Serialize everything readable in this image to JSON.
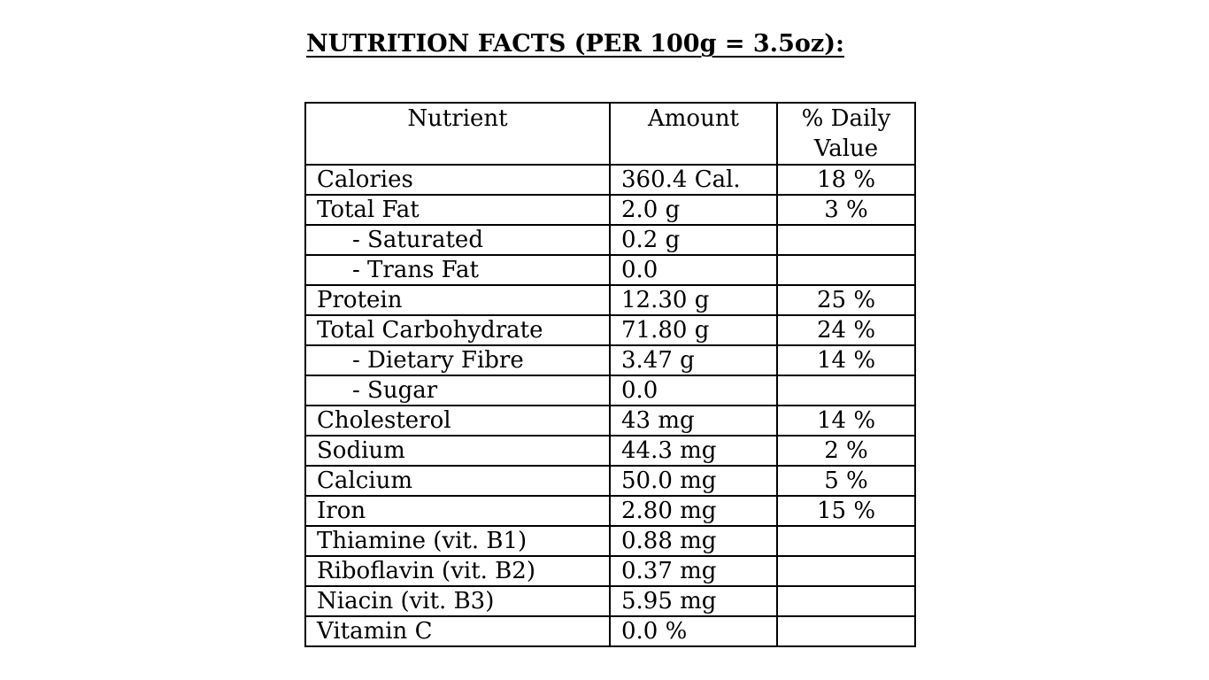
{
  "title": "NUTRITION FACTS (PER 100g = 3.5oz):",
  "table": {
    "headers": {
      "nutrient": "Nutrient",
      "amount": "Amount",
      "daily_value_line1": "% Daily",
      "daily_value_line2": "Value"
    },
    "rows": [
      {
        "nutrient": "Calories",
        "amount": "360.4 Cal.",
        "dv": "18 %"
      },
      {
        "nutrient": "Total Fat",
        "amount": "2.0 g",
        "dv": "3 %"
      },
      {
        "nutrient": "- Saturated",
        "amount": "0.2 g",
        "dv": ""
      },
      {
        "nutrient": "- Trans Fat",
        "amount": "0.0",
        "dv": ""
      },
      {
        "nutrient": "Protein",
        "amount": "12.30 g",
        "dv": "25 %"
      },
      {
        "nutrient": "Total Carbohydrate",
        "amount": "71.80 g",
        "dv": "24 %"
      },
      {
        "nutrient": "- Dietary Fibre",
        "amount": "3.47 g",
        "dv": "14 %"
      },
      {
        "nutrient": "- Sugar",
        "amount": "0.0",
        "dv": ""
      },
      {
        "nutrient": "Cholesterol",
        "amount": "43 mg",
        "dv": "14 %"
      },
      {
        "nutrient": "Sodium",
        "amount": "44.3 mg",
        "dv": "2 %"
      },
      {
        "nutrient": "Calcium",
        "amount": "50.0 mg",
        "dv": "5 %"
      },
      {
        "nutrient": "Iron",
        "amount": "2.80 mg",
        "dv": "15 %"
      },
      {
        "nutrient": "Thiamine (vit. B1)",
        "amount": "0.88 mg",
        "dv": ""
      },
      {
        "nutrient": "Riboflavin (vit. B2)",
        "amount": "0.37 mg",
        "dv": ""
      },
      {
        "nutrient": "Niacin (vit. B3)",
        "amount": "5.95 mg",
        "dv": ""
      },
      {
        "nutrient": "Vitamin C",
        "amount": "0.0 %",
        "dv": ""
      }
    ]
  }
}
